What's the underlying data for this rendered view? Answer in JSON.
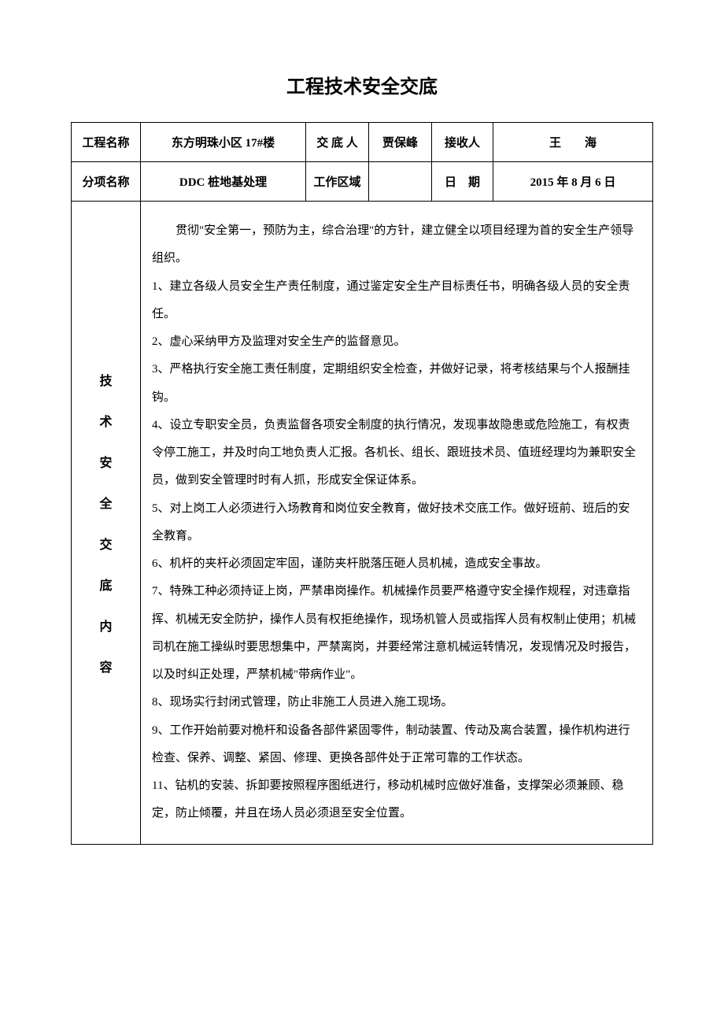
{
  "title": "工程技术安全交底",
  "headers": {
    "row1": {
      "label1": "工程名称",
      "value1": "东方明珠小区 17#楼",
      "label2": "交 底 人",
      "value2": "贾保峰",
      "label3": "接收人",
      "value3": "王　　海"
    },
    "row2": {
      "label1": "分项名称",
      "value1": "DDC 桩地基处理",
      "label2": "工作区域",
      "value2": "",
      "label3": "日　期",
      "value3": "2015 年 8 月 6 日"
    }
  },
  "sideLabel": [
    "技",
    "术",
    "安",
    "全",
    "交",
    "底",
    "内",
    "容"
  ],
  "body": {
    "intro": "贯彻\"安全第一，预防为主，综合治理\"的方针，建立健全以项目经理为首的安全生产领导组织。",
    "items": [
      "1、建立各级人员安全生产责任制度，通过鉴定安全生产目标责任书，明确各级人员的安全责任。",
      "2、虚心采纳甲方及监理对安全生产的监督意见。",
      "3、严格执行安全施工责任制度，定期组织安全检查，并做好记录，将考核结果与个人报酬挂钩。",
      "4、设立专职安全员，负责监督各项安全制度的执行情况，发现事故隐患或危险施工，有权责令停工施工，并及时向工地负责人汇报。各机长、组长、跟班技术员、值班经理均为兼职安全员，做到安全管理时时有人抓，形成安全保证体系。",
      "5、对上岗工人必须进行入场教育和岗位安全教育，做好技术交底工作。做好班前、班后的安全教育。",
      "6、机杆的夹杆必须固定牢固，谨防夹杆脱落压砸人员机械，造成安全事故。",
      "7、特殊工种必须持证上岗，严禁串岗操作。机械操作员要严格遵守安全操作规程，对违章指挥、机械无安全防护，操作人员有权拒绝操作，现场机管人员或指挥人员有权制止使用；机械司机在施工操纵时要思想集中，严禁离岗，并要经常注意机械运转情况，发现情况及时报告，以及时纠正处理，严禁机械\"带病作业\"。",
      "8、现场实行封闭式管理，防止非施工人员进入施工现场。",
      "9、工作开始前要对桅杆和设备各部件紧固零件，制动装置、传动及离合装置，操作机构进行检查、保养、调整、紧固、修理、更换各部件处于正常可靠的工作状态。",
      "11、钻机的安装、拆卸要按照程序图纸进行，移动机械时应做好准备，支撑架必须兼顾、稳定，防止倾覆，并且在场人员必须退至安全位置。"
    ]
  },
  "styling": {
    "page_bg": "#ffffff",
    "border_color": "#000000",
    "title_fontsize": 24,
    "body_fontsize": 15,
    "line_height": 2.35
  }
}
